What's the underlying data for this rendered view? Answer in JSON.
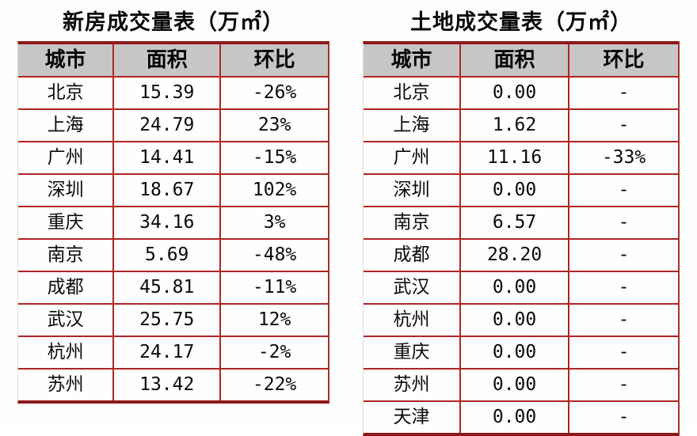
{
  "colors": {
    "border_red": "#b02424",
    "outer_border_red": "#8f1818",
    "header_bg": "#c6c6c6",
    "text": "#0a0a0a",
    "background": "#ffffff"
  },
  "chart_data": [
    {
      "type": "table",
      "title": "新房成交量表（万㎡）",
      "columns": [
        "城市",
        "面积",
        "环比"
      ],
      "rows": [
        [
          "北京",
          "15.39",
          "-26%"
        ],
        [
          "上海",
          "24.79",
          "23%"
        ],
        [
          "广州",
          "14.41",
          "-15%"
        ],
        [
          "深圳",
          "18.67",
          "102%"
        ],
        [
          "重庆",
          "34.16",
          "3%"
        ],
        [
          "南京",
          "5.69",
          "-48%"
        ],
        [
          "成都",
          "45.81",
          "-11%"
        ],
        [
          "武汉",
          "25.75",
          "12%"
        ],
        [
          "杭州",
          "24.17",
          "-2%"
        ],
        [
          "苏州",
          "13.42",
          "-22%"
        ]
      ]
    },
    {
      "type": "table",
      "title": "土地成交量表（万㎡）",
      "columns": [
        "城市",
        "面积",
        "环比"
      ],
      "rows": [
        [
          "北京",
          "0.00",
          "-"
        ],
        [
          "上海",
          "1.62",
          "-"
        ],
        [
          "广州",
          "11.16",
          "-33%"
        ],
        [
          "深圳",
          "0.00",
          "-"
        ],
        [
          "南京",
          "6.57",
          "-"
        ],
        [
          "成都",
          "28.20",
          "-"
        ],
        [
          "武汉",
          "0.00",
          "-"
        ],
        [
          "杭州",
          "0.00",
          "-"
        ],
        [
          "重庆",
          "0.00",
          "-"
        ],
        [
          "苏州",
          "0.00",
          "-"
        ],
        [
          "天津",
          "0.00",
          "-"
        ]
      ]
    }
  ]
}
